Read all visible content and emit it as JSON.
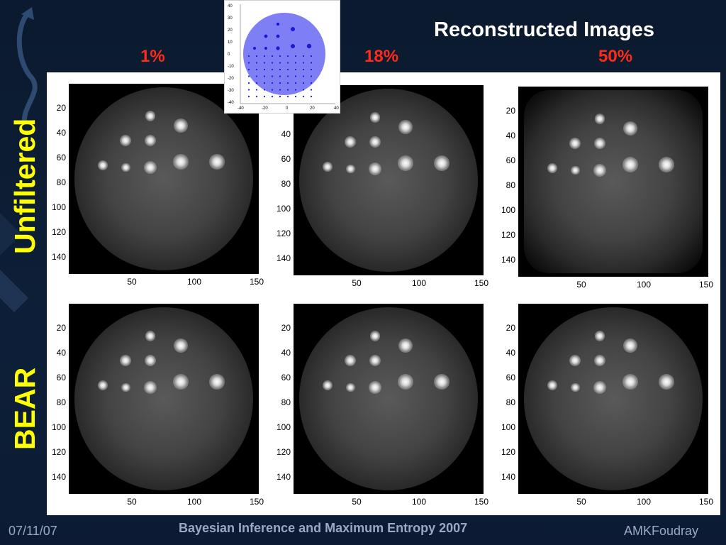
{
  "slide": {
    "title": "Reconstructed Images",
    "columns": [
      "1%",
      "18%",
      "50%"
    ],
    "rows": [
      "Unfiltered",
      "BEAR"
    ]
  },
  "plots": {
    "y_ticks": [
      "20",
      "40",
      "60",
      "80",
      "100",
      "120",
      "140"
    ],
    "x_ticks": [
      "50",
      "100",
      "150"
    ]
  },
  "inset": {
    "y_ticks": [
      "40",
      "30",
      "20",
      "10",
      "0",
      "-10",
      "-20",
      "-30",
      "-40"
    ],
    "x_ticks": [
      "-40",
      "-20",
      "0",
      "20",
      "40"
    ],
    "disk_color": "#7f7ff5",
    "dot_color": "#1a1ad6"
  },
  "footer": {
    "date": "07/11/07",
    "conference": "Bayesian Inference and Maximum Entropy 2007",
    "author": "AMKFoudray"
  },
  "colors": {
    "background": "#0b1a2e",
    "title": "#ffffff",
    "percent": "#ff2a1a",
    "row_label": "#ffff00",
    "footer": "#9aa8c4"
  }
}
